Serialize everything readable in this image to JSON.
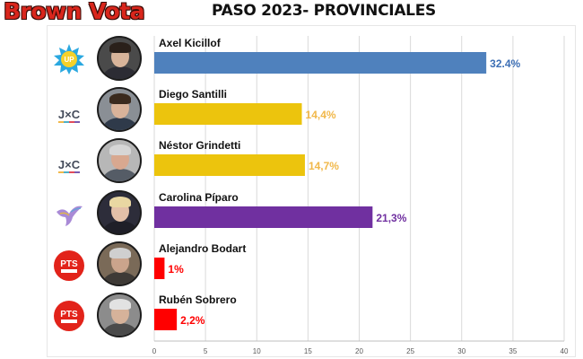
{
  "header": {
    "brand": "Brown Vota",
    "title": "PASO 2023- PROVINCIALES"
  },
  "chart_data": {
    "type": "bar",
    "orientation": "horizontal",
    "title": "PASO 2023- PROVINCIALES",
    "xlim": [
      0,
      40
    ],
    "xticks": [
      0,
      5,
      10,
      15,
      20,
      25,
      30,
      35,
      40
    ],
    "grid": true,
    "categories": [
      "Axel Kicillof",
      "Diego Santilli",
      "Néstor Grindetti",
      "Carolina Píparo",
      "Alejandro Bodart",
      "Rubén Sobrero"
    ],
    "values": [
      32.4,
      14.4,
      14.7,
      21.3,
      1,
      2.2
    ],
    "value_labels": [
      "32.4%",
      "14,4%",
      "14,7%",
      "21,3%",
      "1%",
      "2,2%"
    ],
    "bar_colors": [
      "#4f81bd",
      "#ecc40d",
      "#ecc40d",
      "#7030a0",
      "#ff0000",
      "#ff0000"
    ],
    "label_colors": [
      "#3d6fb5",
      "#f1b84a",
      "#f1b84a",
      "#7030a0",
      "#ff0000",
      "#ff0000"
    ]
  },
  "rows": [
    {
      "party_logo": "up-sun-logo",
      "party_text": "UP"
    },
    {
      "party_logo": "jxc-logo",
      "party_text": "J×C"
    },
    {
      "party_logo": "jxc-logo",
      "party_text": "J×C"
    },
    {
      "party_logo": "libertarian-bird-logo",
      "party_text": ""
    },
    {
      "party_logo": "pts-logo",
      "party_text": "PTS"
    },
    {
      "party_logo": "pts-logo",
      "party_text": "PTS"
    }
  ]
}
